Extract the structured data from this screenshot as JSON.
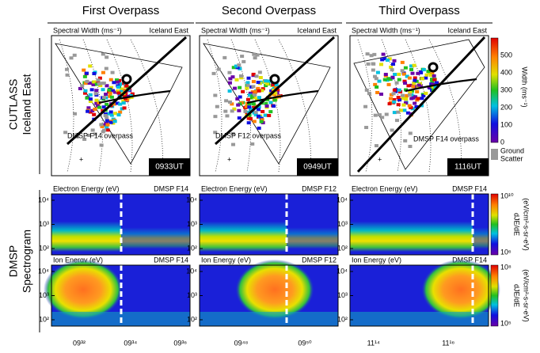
{
  "columns": [
    {
      "title": "First Overpass",
      "overpass": "DMSP F14 overpass",
      "time": "0933UT",
      "satellite_electron": "DMSP F14",
      "satellite_ion": "DMSP F14",
      "xticks": [
        "09³²",
        "09³⁴",
        "09³⁶"
      ]
    },
    {
      "title": "Second Overpass",
      "overpass": "DMSP F12 overpass",
      "time": "0949UT",
      "satellite_electron": "DMSP F12",
      "satellite_ion": "DMSP F12",
      "xticks": [
        "09⁴⁸",
        "09⁵⁰"
      ]
    },
    {
      "title": "Third Overpass",
      "overpass": "DMSP F14 overpass",
      "time": "1116UT",
      "satellite_electron": "DMSP F14",
      "satellite_ion": "DMSP F14",
      "xticks": [
        "11¹⁴",
        "11¹⁶"
      ]
    }
  ],
  "rows": {
    "radar": [
      "CUTLASS",
      "Iceland East"
    ],
    "spectrogram": [
      "DMSP",
      "Spectrogram"
    ]
  },
  "panel": {
    "parameter": "Spectral Width (ms⁻¹)",
    "radar": "Iceland East",
    "electron": "Electron Energy (eV)",
    "ion": "Ion Energy (eV)",
    "energy_ticks": [
      "10⁴",
      "10³",
      "10²"
    ]
  },
  "width_scale": {
    "ticks": [
      0,
      100,
      200,
      300,
      400,
      500
    ],
    "label": "Width (ms⁻¹)",
    "ground_scatter": [
      "Ground",
      "Scatter"
    ]
  },
  "flux_scales": {
    "electron": {
      "max": "10¹⁰",
      "min": "10⁶"
    },
    "ion": {
      "max": "10⁸",
      "min": "10⁵"
    },
    "label": "dJE/dE",
    "unit": "(eV/cm²-s-sr-eV)"
  }
}
